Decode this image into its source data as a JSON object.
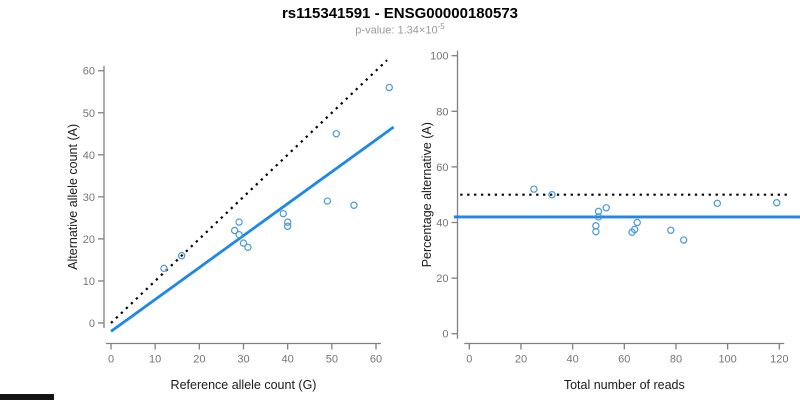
{
  "header": {
    "title": "rs115341591 - ENSG00000180573",
    "subtitle_prefix": "p-value: 1.34×10",
    "subtitle_exponent": "-5"
  },
  "colors": {
    "point_blue": "#4898d8",
    "line_blue": "#1f87e8",
    "dotted_black": "#000000",
    "axis_gray": "#808080",
    "tick_text_gray": "#757575",
    "subtitle_gray": "#9a9a9a",
    "artifact_bar": "#141414"
  },
  "chart_data": [
    {
      "id": "allele-counts",
      "type": "scatter",
      "xlabel": "Reference allele count (G)",
      "ylabel": "Alternative allele count (A)",
      "xlim": [
        -2.5,
        65.5
      ],
      "ylim": [
        -2.5,
        63
      ],
      "xticks": [
        0,
        10,
        20,
        30,
        40,
        50,
        60
      ],
      "yticks": [
        0,
        10,
        20,
        30,
        40,
        50,
        60
      ],
      "grid": false,
      "legend": false,
      "points": [
        [
          12,
          13
        ],
        [
          16,
          16
        ],
        [
          28,
          22
        ],
        [
          29,
          24
        ],
        [
          29,
          21
        ],
        [
          30,
          19
        ],
        [
          31,
          18
        ],
        [
          39,
          26
        ],
        [
          40,
          24
        ],
        [
          40,
          23
        ],
        [
          49,
          29
        ],
        [
          51,
          45
        ],
        [
          55,
          28
        ],
        [
          63,
          56
        ]
      ],
      "lines": [
        {
          "role": "expected-1to1",
          "style": "dotted",
          "color": "#000000",
          "from": [
            0,
            0
          ],
          "to": [
            62.5,
            62.5
          ]
        },
        {
          "role": "fit",
          "style": "solid",
          "color": "#1f87e8",
          "from": [
            0,
            -2
          ],
          "to": [
            64,
            46.6
          ]
        }
      ]
    },
    {
      "id": "percentage-alternative",
      "type": "scatter",
      "xlabel": "Total number of reads",
      "ylabel": "Percentage alternative (A)",
      "xlim": [
        -4,
        124
      ],
      "ylim": [
        -3,
        103
      ],
      "xticks": [
        0,
        20,
        40,
        60,
        80,
        100,
        120
      ],
      "yticks": [
        0,
        20,
        40,
        60,
        80,
        100
      ],
      "grid": false,
      "legend": false,
      "points": [
        [
          25,
          52.0
        ],
        [
          32,
          50.0
        ],
        [
          50,
          44.0
        ],
        [
          53,
          45.3
        ],
        [
          50,
          42.0
        ],
        [
          49,
          38.8
        ],
        [
          49,
          36.7
        ],
        [
          65,
          40.0
        ],
        [
          64,
          37.5
        ],
        [
          63,
          36.5
        ],
        [
          78,
          37.2
        ],
        [
          96,
          46.9
        ],
        [
          83,
          33.7
        ],
        [
          119,
          47.1
        ]
      ],
      "lines": [
        {
          "role": "expected-50pct",
          "style": "dotted",
          "color": "#000000",
          "from": [
            -3.5,
            50
          ],
          "to": [
            123,
            50
          ]
        },
        {
          "role": "mean-percentage",
          "style": "solid",
          "color": "#1f87e8",
          "from": [
            -6,
            42
          ],
          "to": [
            128,
            42
          ]
        }
      ]
    }
  ]
}
